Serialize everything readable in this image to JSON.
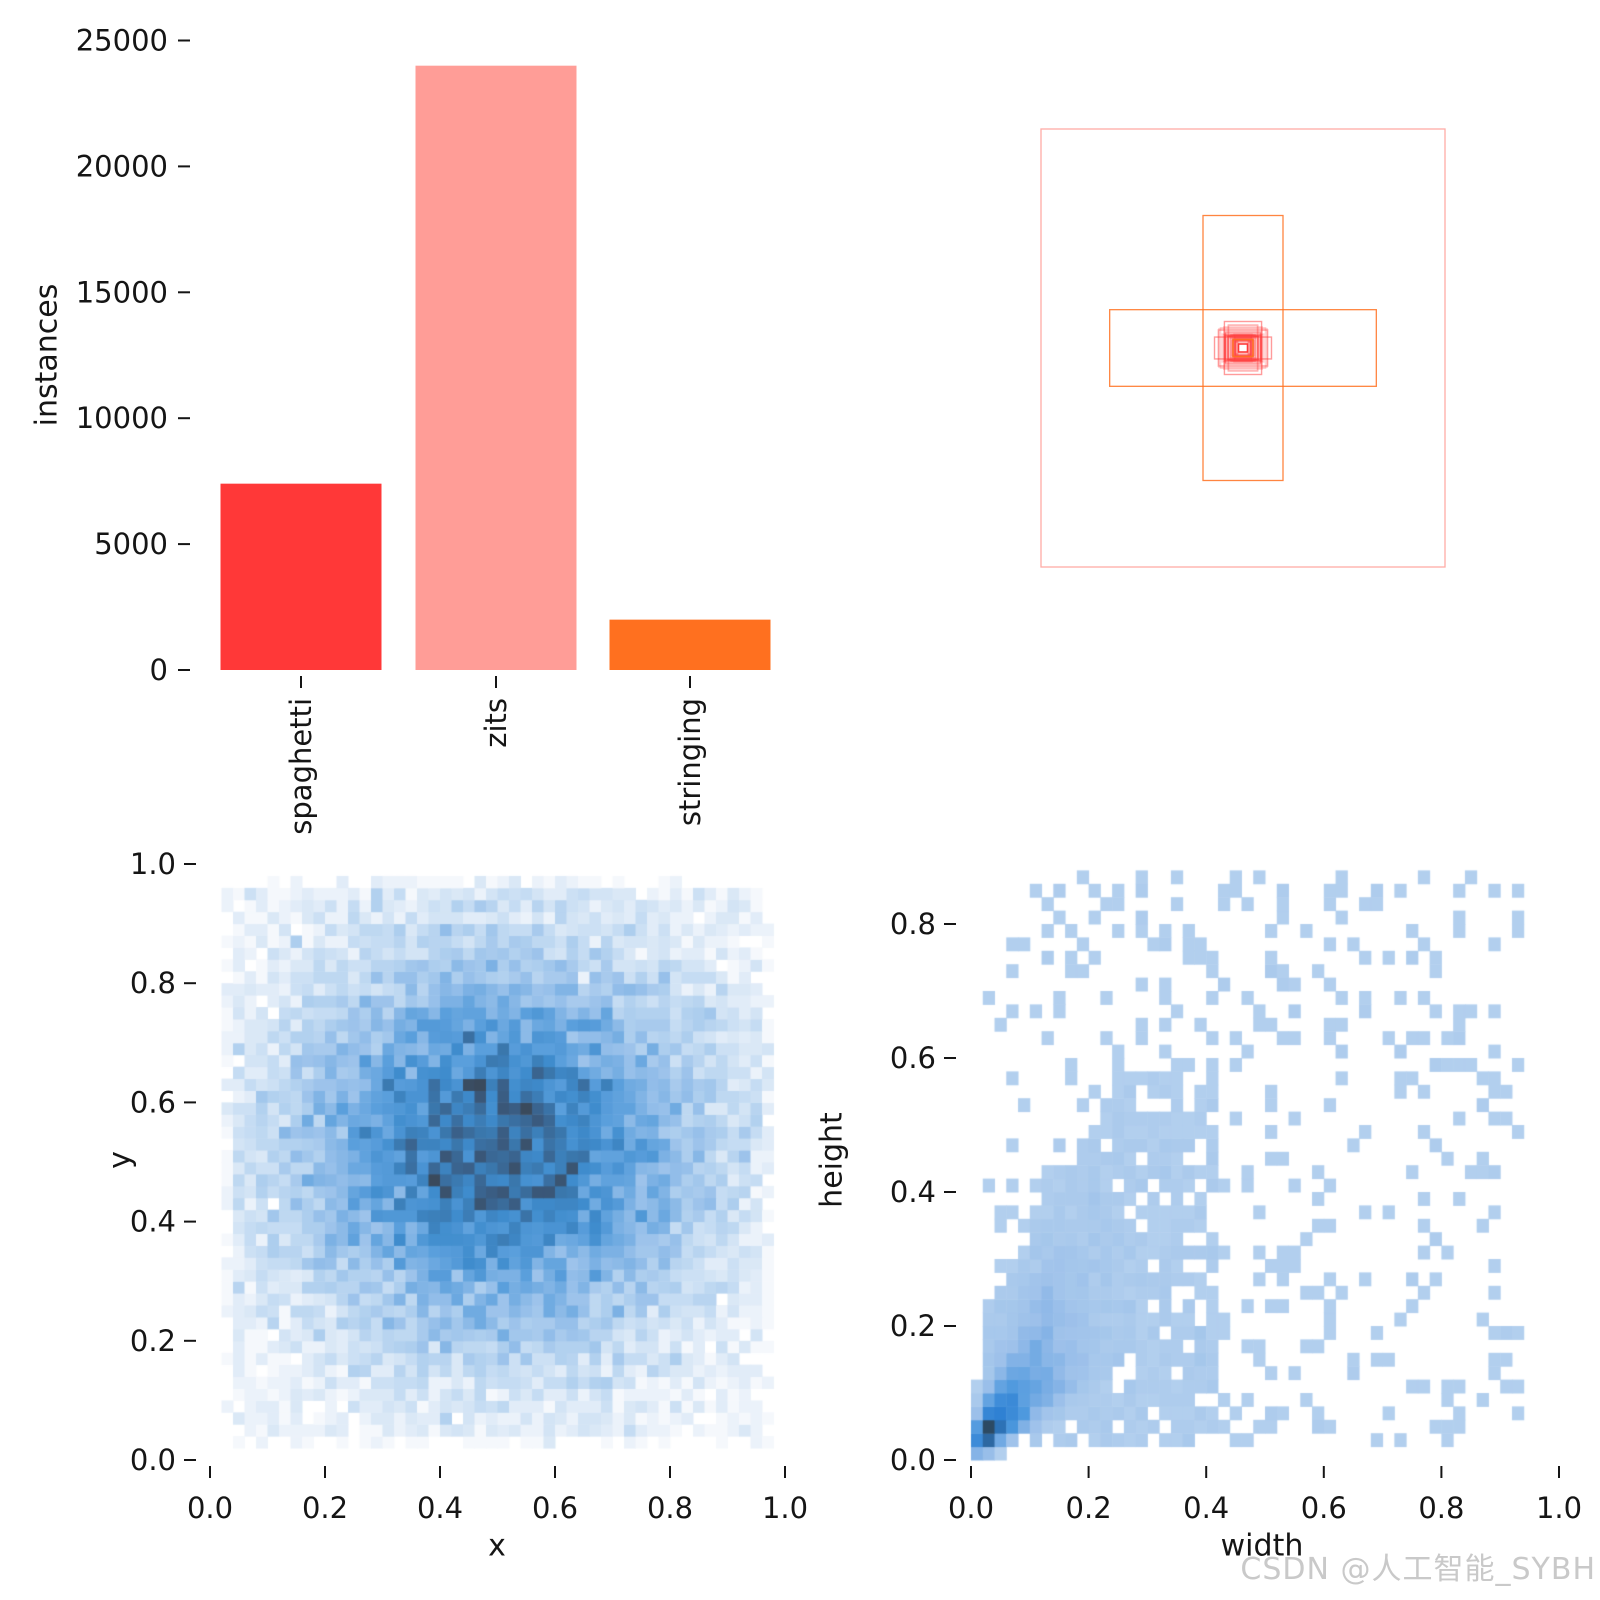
{
  "watermark": {
    "text": "CSDN @人工智能_SYBH",
    "color": "#c9c9c9"
  },
  "class_colors": {
    "spaghetti": "#FF3838",
    "zits": "#FF9D97",
    "stringing": "#FF701F"
  },
  "chart_data": [
    {
      "id": "instances-bar",
      "type": "bar",
      "title": "",
      "xlabel": "",
      "ylabel": "instances",
      "categories": [
        "spaghetti",
        "zits",
        "stringing"
      ],
      "values": [
        7400,
        24000,
        2000
      ],
      "bar_colors": [
        "#FF3838",
        "#FF9D97",
        "#FF701F"
      ],
      "ylim": [
        0,
        25000
      ],
      "yticks": [
        0,
        5000,
        10000,
        15000,
        20000,
        25000
      ],
      "ytick_labels": [
        "0",
        "5000",
        "10000",
        "15000",
        "20000",
        "25000"
      ],
      "grid": false,
      "legend": "none"
    },
    {
      "id": "bbox-overlay",
      "type": "other",
      "subtype": "bounding-box-outlines",
      "description": "all dataset bounding boxes drawn concentric at the center, colored by class",
      "rects": [
        {
          "w": 1.0,
          "h": 1.0,
          "class": "zits",
          "opacity": 0.85,
          "stroke_width": 1.3
        },
        {
          "w": 0.198,
          "h": 0.605,
          "class": "stringing",
          "opacity": 0.85,
          "stroke_width": 1.3
        },
        {
          "w": 0.66,
          "h": 0.175,
          "class": "stringing",
          "opacity": 0.85,
          "stroke_width": 1.3
        }
      ],
      "center_cluster": {
        "class": "spaghetti",
        "count": 48,
        "min_size": 0.032,
        "max_size": 0.109,
        "opacity": 0.22,
        "seed": 7,
        "accent_rects": [
          {
            "w": 0.141,
            "h": 0.05,
            "class": "spaghetti",
            "opacity": 0.5,
            "stroke_width": 1.4
          },
          {
            "w": 0.092,
            "h": 0.121,
            "class": "spaghetti",
            "opacity": 0.5,
            "stroke_width": 1.4
          },
          {
            "w": 0.0495,
            "h": 0.0388,
            "class": "stringing",
            "opacity": 0.9,
            "stroke_width": 1.6
          },
          {
            "w": 0.0223,
            "h": 0.0183,
            "class": "spaghetti",
            "opacity": 1.0,
            "stroke_width": 1.6
          }
        ]
      }
    },
    {
      "id": "xy-hist2d",
      "type": "heatmap",
      "xlabel": "x",
      "ylabel": "y",
      "xlim": [
        0,
        1
      ],
      "ylim": [
        0,
        1
      ],
      "bins": [
        50,
        50
      ],
      "xticks": [
        0,
        0.2,
        0.4,
        0.6,
        0.8,
        1.0
      ],
      "xtick_labels": [
        "0.0",
        "0.2",
        "0.4",
        "0.6",
        "0.8",
        "1.0"
      ],
      "yticks": [
        0,
        0.2,
        0.4,
        0.6,
        0.8,
        1.0
      ],
      "ytick_labels": [
        "0.0",
        "0.2",
        "0.4",
        "0.6",
        "0.8",
        "1.0"
      ],
      "distribution": {
        "seed": 1337,
        "n_gauss": 26000,
        "mu": [
          0.5,
          0.525
        ],
        "sigma": [
          0.205,
          0.19
        ],
        "n_uniform": 2600,
        "clip": [
          0.03,
          0.97
        ]
      },
      "scale": "linear",
      "color_stops": [
        [
          0.0,
          "#ffffff"
        ],
        [
          0.05,
          "#e3edf8"
        ],
        [
          0.15,
          "#bcd7f1"
        ],
        [
          0.3,
          "#8fbbe8"
        ],
        [
          0.47,
          "#5b9fdc"
        ],
        [
          0.62,
          "#3f8ccd"
        ],
        [
          0.75,
          "#3a76ab"
        ],
        [
          0.87,
          "#3a5d84"
        ],
        [
          1.0,
          "#3a4a5c"
        ]
      ]
    },
    {
      "id": "wh-hist2d",
      "type": "heatmap",
      "xlabel": "width",
      "ylabel": "height",
      "xlim": [
        0,
        1.04
      ],
      "ylim": [
        0,
        0.9
      ],
      "bin_size": 0.02,
      "xticks": [
        0,
        0.2,
        0.4,
        0.6,
        0.8,
        1.0
      ],
      "xtick_labels": [
        "0.0",
        "0.2",
        "0.4",
        "0.6",
        "0.8",
        "1.0"
      ],
      "yticks": [
        0,
        0.2,
        0.4,
        0.6,
        0.8
      ],
      "ytick_labels": [
        "0.0",
        "0.2",
        "0.4",
        "0.6",
        "0.8"
      ],
      "distribution": {
        "seed": 2025,
        "n": 4300,
        "description": "correlated half-normal mass near origin (small boxes) plus sparse uniform tail toward large width/height"
      },
      "scale": "log",
      "color_stops": [
        [
          0.0,
          "#ffffff"
        ],
        [
          0.1,
          "#b4d0ee"
        ],
        [
          0.3,
          "#a9c9ec"
        ],
        [
          0.55,
          "#9cc0ea"
        ],
        [
          0.7,
          "#79ade4"
        ],
        [
          0.82,
          "#4e99de"
        ],
        [
          0.92,
          "#2d7fd2"
        ],
        [
          1.0,
          "#2c4a63"
        ]
      ]
    }
  ]
}
